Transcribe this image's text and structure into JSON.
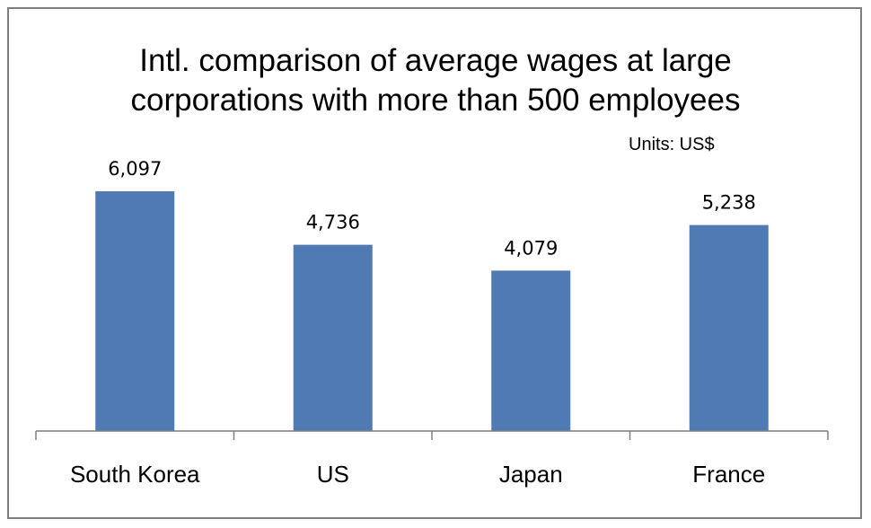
{
  "chart_data": {
    "type": "bar",
    "title_lines": [
      "Intl. comparison of average wages at large",
      "corporations with more than 500 employees"
    ],
    "units_label": "Units: US$",
    "categories": [
      "South Korea",
      "US",
      "Japan",
      "France"
    ],
    "values": [
      6097,
      4736,
      4079,
      5238
    ],
    "value_labels": [
      "6,097",
      "4,736",
      "4,079",
      "5,238"
    ],
    "xlabel": "",
    "ylabel": "",
    "ylim": [
      0,
      7000
    ],
    "grid": false,
    "legend": "none",
    "bar_color": "#4f7ab3",
    "axis_color": "#7f7f7f"
  }
}
